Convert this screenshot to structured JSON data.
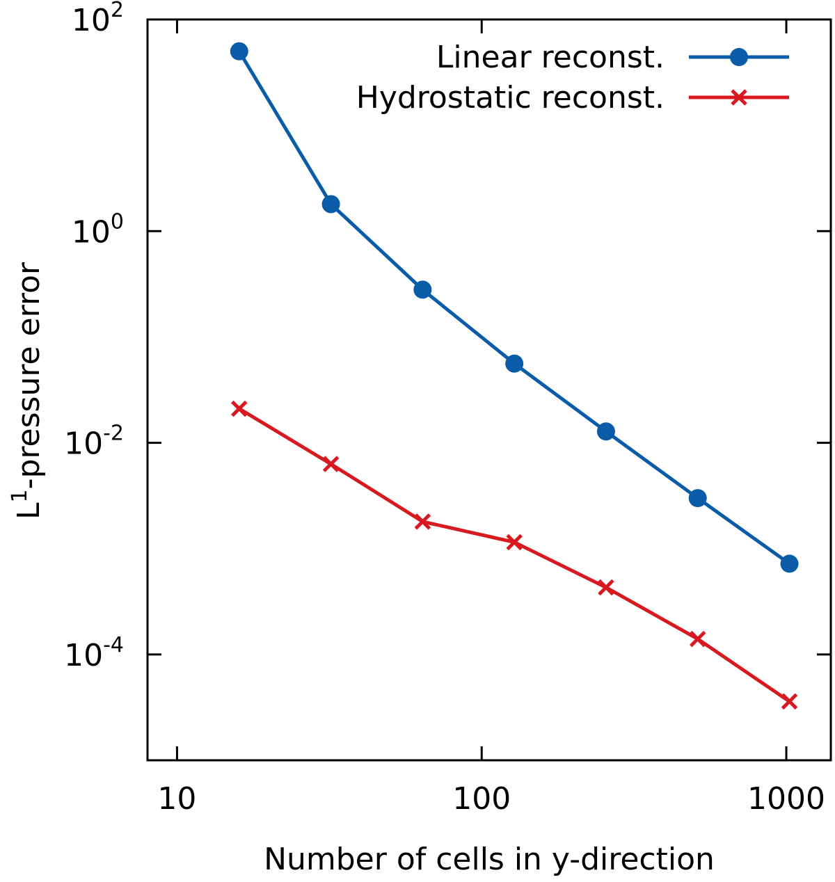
{
  "chart_data": {
    "type": "line",
    "title": "",
    "xlabel": "Number of cells in y-direction",
    "ylabel_base": "L",
    "ylabel_sup": "1",
    "ylabel_rest": "-pressure error",
    "xscale": "log",
    "yscale": "log",
    "xlim": [
      8,
      1400
    ],
    "ylim": [
      1e-05,
      100
    ],
    "grid": false,
    "legend_position": "top-right",
    "x_ticks": [
      {
        "value": 10,
        "label": "10"
      },
      {
        "value": 100,
        "label": "100"
      },
      {
        "value": 1000,
        "label": "1000"
      }
    ],
    "y_ticks": [
      {
        "value": 100,
        "base": "10",
        "exp": "2"
      },
      {
        "value": 1,
        "base": "10",
        "exp": "0"
      },
      {
        "value": 0.01,
        "base": "10",
        "exp": "-2"
      },
      {
        "value": 0.0001,
        "base": "10",
        "exp": "-4"
      }
    ],
    "x": [
      16,
      32,
      64,
      128,
      256,
      512,
      1024
    ],
    "series": [
      {
        "name": "Linear reconst.",
        "color": "#0a5ba8",
        "marker": "circle",
        "values": [
          50,
          1.8,
          0.28,
          0.056,
          0.0128,
          0.003,
          0.00072
        ]
      },
      {
        "name": "Hydrostatic reconst.",
        "color": "#d81920",
        "marker": "cross",
        "values": [
          0.021,
          0.0063,
          0.0018,
          0.00115,
          0.00043,
          0.00014,
          3.6e-05
        ]
      }
    ]
  }
}
